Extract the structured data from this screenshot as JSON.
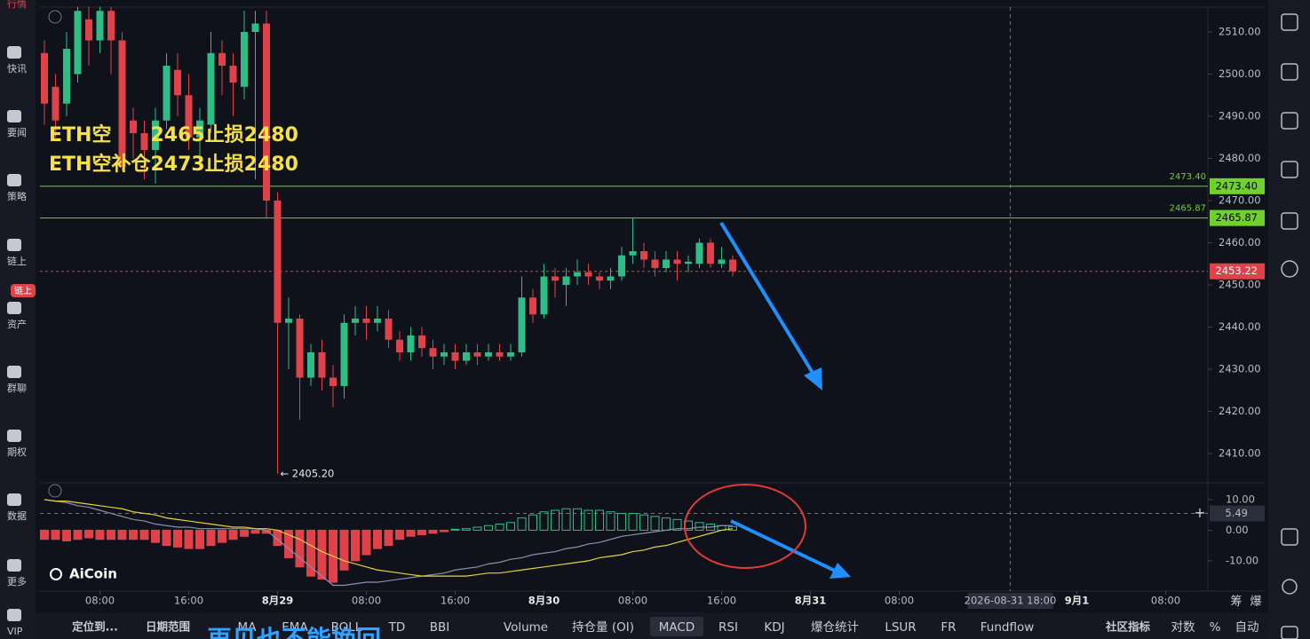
{
  "chart_data": [
    {
      "type": "candlestick",
      "open": [
        2505,
        2497,
        2493,
        2500,
        2513,
        2508,
        2515,
        2508,
        2489,
        2486,
        2482,
        2489,
        2501,
        2495,
        2485,
        2488,
        2505,
        2502,
        2497,
        2510,
        2512,
        2470,
        2441,
        2442,
        2428,
        2434,
        2428,
        2426,
        2441,
        2442,
        2441,
        2442,
        2437,
        2434,
        2438,
        2435,
        2433,
        2434,
        2432,
        2434,
        2433,
        2434,
        2433,
        2434,
        2447,
        2443,
        2452,
        2450,
        2452,
        2453,
        2452,
        2451,
        2452,
        2457,
        2458,
        2456,
        2454,
        2456,
        2455,
        2455,
        2460,
        2455,
        2456
      ],
      "high": [
        2508,
        2500,
        2510,
        2516,
        2516,
        2516,
        2516,
        2510,
        2492,
        2489,
        2492,
        2505,
        2505,
        2500,
        2492,
        2510,
        2508,
        2505,
        2515,
        2515,
        2515,
        2472,
        2447,
        2443,
        2436,
        2437,
        2431,
        2443,
        2445,
        2445,
        2445,
        2444,
        2439,
        2440,
        2440,
        2437,
        2436,
        2436,
        2436,
        2436,
        2436,
        2436,
        2436,
        2452,
        2449,
        2455,
        2454,
        2454,
        2456,
        2455,
        2453,
        2454,
        2459,
        2466,
        2460,
        2458,
        2458,
        2458,
        2457,
        2461,
        2461,
        2459,
        2457
      ],
      "low": [
        2488,
        2485,
        2490,
        2498,
        2502,
        2505,
        2500,
        2477,
        2480,
        2475,
        2474,
        2487,
        2490,
        2482,
        2480,
        2486,
        2495,
        2490,
        2494,
        2475,
        2466,
        2405.2,
        2430,
        2418,
        2426,
        2425,
        2421,
        2423,
        2438,
        2437,
        2439,
        2435,
        2432,
        2432,
        2433,
        2430,
        2431,
        2430,
        2431,
        2431,
        2432,
        2432,
        2432,
        2433,
        2441,
        2442,
        2447,
        2445,
        2450,
        2450,
        2449,
        2449,
        2451,
        2455,
        2454,
        2452,
        2453,
        2451,
        2453,
        2454,
        2454,
        2454,
        2452
      ],
      "close": [
        2493,
        2489,
        2506,
        2515,
        2508,
        2515,
        2508,
        2478,
        2486,
        2482,
        2489,
        2502,
        2495,
        2485,
        2489,
        2505,
        2502,
        2498,
        2510,
        2512,
        2470,
        2441,
        2442,
        2428,
        2434,
        2428,
        2426,
        2441,
        2442,
        2441,
        2442,
        2437,
        2434,
        2438,
        2435,
        2433,
        2434,
        2432,
        2434,
        2433,
        2434,
        2433,
        2434,
        2447,
        2443,
        2452,
        2451,
        2452,
        2453,
        2452,
        2451,
        2452,
        2457,
        2458,
        2456,
        2454,
        2456,
        2455,
        2455.5,
        2460,
        2455,
        2456,
        2453.22
      ],
      "up_color": "#2ebd85",
      "down_color": "#e0424a",
      "xlim": [
        -0.4,
        104.8
      ],
      "xticks": [
        {
          "value": 5,
          "label": "08:00"
        },
        {
          "value": 13,
          "label": "16:00"
        },
        {
          "value": 21,
          "label": "8月29"
        },
        {
          "value": 29,
          "label": "08:00"
        },
        {
          "value": 37,
          "label": "16:00"
        },
        {
          "value": 45,
          "label": "8月30"
        },
        {
          "value": 53,
          "label": "08:00"
        },
        {
          "value": 61,
          "label": "16:00"
        },
        {
          "value": 69,
          "label": "8月31"
        },
        {
          "value": 77,
          "label": "08:00"
        },
        {
          "value": 93,
          "label": "9月1"
        },
        {
          "value": 101,
          "label": "08:00"
        }
      ],
      "ylim": [
        2403.26,
        2515.9
      ],
      "yticks": [
        {
          "value": 2410,
          "label": "2410.00"
        },
        {
          "value": 2420,
          "label": "2420.00"
        },
        {
          "value": 2430,
          "label": "2430.00"
        },
        {
          "value": 2440,
          "label": "2440.00"
        },
        {
          "value": 2450,
          "label": "2450.00"
        },
        {
          "value": 2460,
          "label": "2460.00"
        },
        {
          "value": 2470,
          "label": "2470.00"
        },
        {
          "value": 2480,
          "label": "2480.00"
        },
        {
          "value": 2490,
          "label": "2490.00"
        },
        {
          "value": 2500,
          "label": "2500.00"
        },
        {
          "value": 2510,
          "label": "2510.00"
        }
      ],
      "price_lines": [
        {
          "value": 2473.4,
          "label": "2473.40",
          "color": "#6fd12b"
        },
        {
          "value": 2465.87,
          "label": "2465.87",
          "color": "#6fd12b"
        }
      ],
      "current_price": {
        "value": 2453.22,
        "label": "2453.22",
        "color": "#e0424a"
      },
      "low_marker": {
        "value": 2405.2,
        "label": "← 2405.20"
      },
      "crosshair": {
        "x": 87,
        "label": "2026-08-31 18:00"
      },
      "annotations": [
        "ETH空　　2465止损2480",
        "ETH空补仓2473止损2480"
      ]
    },
    {
      "type": "macd",
      "histogram": [
        -3,
        -3,
        -3.5,
        -3,
        -2.5,
        -3,
        -3,
        -3,
        -3,
        -3,
        -4,
        -5,
        -5.5,
        -6,
        -6,
        -5,
        -4,
        -3,
        -2,
        -1,
        -1,
        -5,
        -9,
        -12,
        -15,
        -16,
        -17,
        -13,
        -10,
        -8,
        -6,
        -5,
        -3,
        -2,
        -1.5,
        -1,
        -0.5,
        0.3,
        0.5,
        1,
        1.5,
        2,
        2.5,
        4,
        5,
        6,
        6.5,
        7,
        7,
        6.5,
        6.5,
        6,
        5.5,
        5.5,
        5,
        4.5,
        4,
        3.5,
        3,
        2.5,
        2,
        1.5,
        1.2
      ],
      "up_color": "#2ebd85",
      "down_color": "#e0424a",
      "series": [
        {
          "color": "#8a8fb0",
          "values": [
            10,
            9.5,
            9,
            8,
            7.5,
            6.5,
            5.5,
            4.5,
            3.5,
            3,
            2,
            1.5,
            1,
            1,
            0.5,
            0.5,
            0.5,
            0.5,
            0.5,
            0.5,
            0,
            -3,
            -6,
            -9,
            -12,
            -15,
            -18,
            -18,
            -17.5,
            -17,
            -17,
            -16.5,
            -16,
            -15.5,
            -15,
            -14.5,
            -14,
            -13,
            -12.5,
            -12,
            -11,
            -10.5,
            -9.5,
            -9,
            -8,
            -7.5,
            -7,
            -6,
            -5.5,
            -4.5,
            -4,
            -3,
            -2,
            -1.5,
            -1,
            -0.5,
            0,
            0.5,
            0.5,
            1,
            1,
            1.5,
            1.5
          ]
        },
        {
          "color": "#e6d23c",
          "values": [
            10,
            9.5,
            9.5,
            9,
            8.5,
            8,
            7.5,
            7,
            6,
            5.5,
            5,
            4,
            3.5,
            3,
            2.5,
            2,
            1.5,
            1,
            1,
            0.5,
            0.5,
            0,
            -1.5,
            -3,
            -5,
            -7,
            -8.5,
            -10,
            -11,
            -12,
            -13,
            -13.5,
            -14,
            -14.5,
            -15,
            -15,
            -15,
            -15,
            -15,
            -14.5,
            -14,
            -14,
            -13.5,
            -13,
            -12.5,
            -12,
            -11.5,
            -11,
            -10.5,
            -10,
            -9,
            -8.5,
            -8,
            -7,
            -6.5,
            -5.5,
            -5,
            -4,
            -3,
            -2,
            -1,
            0,
            0.5
          ]
        }
      ],
      "ylim": [
        -19.6,
        15.2
      ],
      "yticks": [
        {
          "value": 10,
          "label": "10.00"
        },
        {
          "value": 0,
          "label": "0.00"
        },
        {
          "value": -10,
          "label": "-10.00"
        }
      ],
      "crosshair": {
        "value": 5.49,
        "label": "5.49"
      }
    }
  ],
  "logo": "AiCoin",
  "sidebar": {
    "items": [
      "行情",
      "快讯",
      "要闻",
      "策略",
      "链上",
      "资产",
      "群聊",
      "期权",
      "数据",
      "更多",
      "VIP"
    ],
    "badge": "链上"
  },
  "toolbar": {
    "items": [
      "定位到...",
      "日期范围",
      "MA",
      "EMA",
      "BOLL",
      "TD",
      "BBI",
      "Volume",
      "持仓量 (OI)",
      "MACD",
      "RSI",
      "KDJ",
      "爆仓统计",
      "LSUR",
      "FR",
      "Fundflow",
      "社区指标",
      "对数",
      "%",
      "自动"
    ],
    "active": "MACD"
  },
  "axis_extras": [
    "筹",
    "爆"
  ],
  "subtitle": "再见也不能挽回"
}
